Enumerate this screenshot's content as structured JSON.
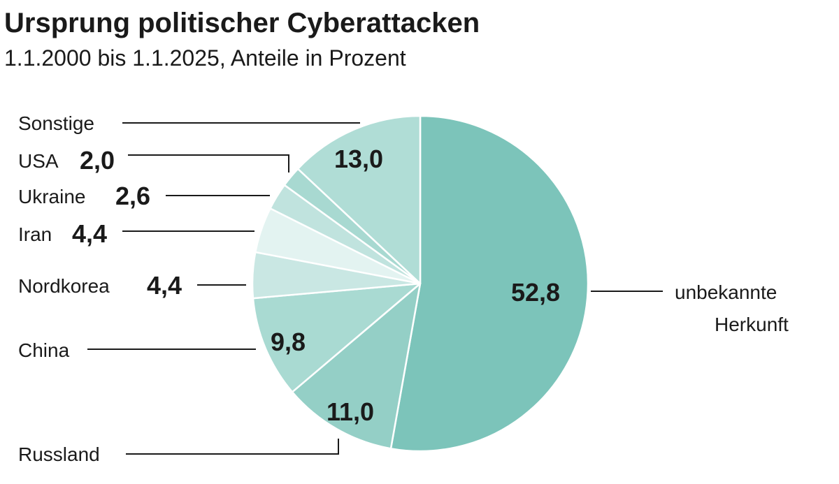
{
  "chart_data": {
    "type": "pie",
    "title": "Ursprung politischer Cyberattacken",
    "subtitle": "1.1.2000 bis 1.1.2025, Anteile in Prozent",
    "start_angle": "12 o'clock, clockwise",
    "slices": [
      {
        "label": "unbekannte Herkunft",
        "label_lines": [
          "unbekannte",
          "Herkunft"
        ],
        "value": 52.8,
        "value_label": "52,8",
        "color": "#7cc4ba"
      },
      {
        "label": "Russland",
        "value": 11.0,
        "value_label": "11,0",
        "color": "#94cfc6"
      },
      {
        "label": "China",
        "value": 9.8,
        "value_label": "9,8",
        "color": "#a9dad2"
      },
      {
        "label": "Nordkorea",
        "value": 4.4,
        "value_label": "4,4",
        "color": "#c9e7e3"
      },
      {
        "label": "Iran",
        "value": 4.4,
        "value_label": "4,4",
        "color": "#e3f3f1"
      },
      {
        "label": "Ukraine",
        "value": 2.6,
        "value_label": "2,6",
        "color": "#c0e3de"
      },
      {
        "label": "USA",
        "value": 2.0,
        "value_label": "2,0",
        "color": "#a8d9d1"
      },
      {
        "label": "Sonstige",
        "value": 13.0,
        "value_label": "13,0",
        "color": "#b0ddd6"
      }
    ]
  }
}
